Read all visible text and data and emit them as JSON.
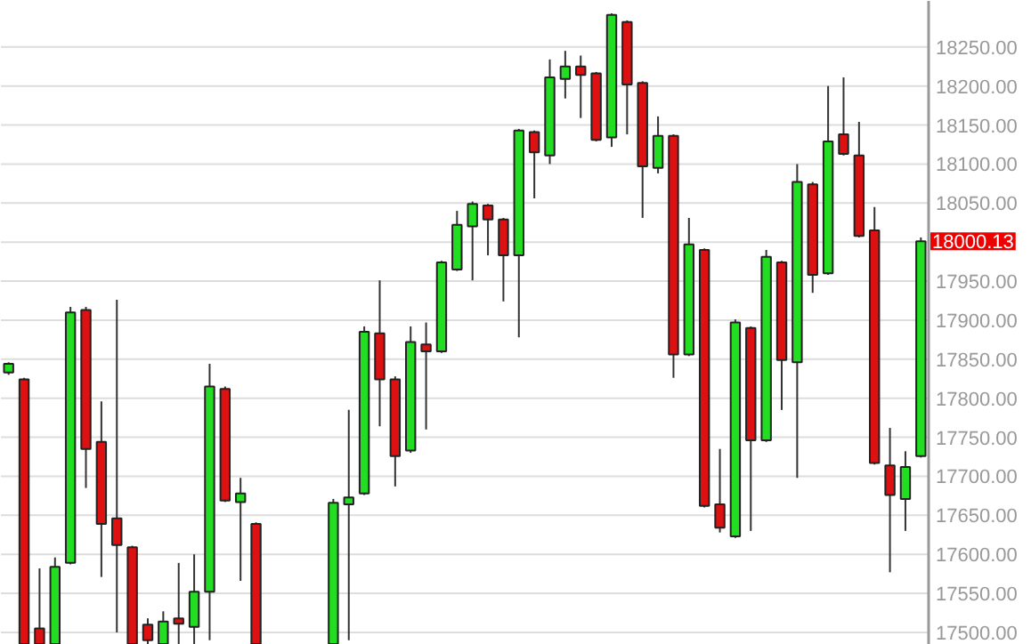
{
  "chart_data": {
    "type": "candlestick",
    "categories": [
      null,
      null,
      null,
      null,
      null,
      null,
      null,
      null,
      null,
      null,
      null,
      null,
      null,
      null,
      null,
      null,
      null,
      null,
      null,
      null,
      null,
      null,
      null,
      null,
      null,
      null,
      null,
      null,
      null,
      null,
      null,
      null,
      null,
      null,
      null,
      null,
      null,
      null,
      null,
      null,
      null,
      null,
      null,
      null,
      null,
      null,
      null,
      null,
      null,
      null,
      null,
      null,
      null,
      null,
      null,
      null,
      null,
      null,
      null,
      null
    ],
    "ohlc": [
      [
        17833,
        17846,
        17830,
        17844
      ],
      [
        17824,
        17826,
        17485,
        17485
      ],
      [
        17505,
        17582,
        17485,
        17485
      ],
      [
        17485,
        17596,
        17485,
        17584
      ],
      [
        17589,
        17917,
        17587,
        17910
      ],
      [
        17913,
        17917,
        17685,
        17735
      ],
      [
        17744,
        17796,
        17571,
        17639
      ],
      [
        17646,
        17926,
        17500,
        17612
      ],
      [
        17609,
        17611,
        17485,
        17485
      ],
      [
        17510,
        17518,
        17485,
        17490
      ],
      [
        17485,
        17527,
        17485,
        17514
      ],
      [
        17518,
        17589,
        17485,
        17511
      ],
      [
        17507,
        17600,
        17485,
        17552
      ],
      [
        17552,
        17844,
        17490,
        17815
      ],
      [
        17812,
        17815,
        17667,
        17669
      ],
      [
        17667,
        17698,
        17566,
        17678
      ],
      [
        17639,
        17641,
        17485,
        17485
      ],
      null,
      null,
      null,
      null,
      [
        17485,
        17671,
        17485,
        17666
      ],
      [
        17664,
        17785,
        17490,
        17673
      ],
      [
        17678,
        17892,
        17676,
        17885
      ],
      [
        17883,
        17951,
        17764,
        17824
      ],
      [
        17824,
        17828,
        17687,
        17726
      ],
      [
        17733,
        17892,
        17730,
        17872
      ],
      [
        17869,
        17897,
        17760,
        17860
      ],
      [
        17860,
        17976,
        17858,
        17974
      ],
      [
        17965,
        18040,
        17963,
        18022
      ],
      [
        18020,
        18052,
        17951,
        18049
      ],
      [
        18047,
        18049,
        17983,
        18029
      ],
      [
        18029,
        18031,
        17924,
        17983
      ],
      [
        17983,
        18145,
        17878,
        18143
      ],
      [
        18141,
        18143,
        18056,
        18115
      ],
      [
        18111,
        18234,
        18100,
        18211
      ],
      [
        18209,
        18245,
        18184,
        18225
      ],
      [
        18225,
        18239,
        18159,
        18214
      ],
      [
        18216,
        18218,
        18129,
        18131
      ],
      [
        18134,
        18293,
        18122,
        18291
      ],
      [
        18282,
        18284,
        18138,
        18202
      ],
      [
        18204,
        18206,
        18031,
        18097
      ],
      [
        18095,
        18161,
        18088,
        18136
      ],
      [
        18136,
        18138,
        17826,
        17856
      ],
      [
        17856,
        18031,
        17854,
        17997
      ],
      [
        17990,
        17992,
        17660,
        17662
      ],
      [
        17664,
        17735,
        17628,
        17634
      ],
      [
        17623,
        17901,
        17621,
        17897
      ],
      [
        17890,
        17892,
        17630,
        17746
      ],
      [
        17746,
        17990,
        17744,
        17981
      ],
      [
        17974,
        17976,
        17785,
        17849
      ],
      [
        17846,
        18100,
        17698,
        18077
      ],
      [
        18074,
        18077,
        17935,
        17958
      ],
      [
        17960,
        18200,
        17958,
        18129
      ],
      [
        18138,
        18211,
        18111,
        18113
      ],
      [
        18111,
        18154,
        18006,
        18008
      ],
      [
        18015,
        18045,
        17715,
        17717
      ],
      [
        17714,
        17762,
        17577,
        17676
      ],
      [
        17671,
        17732,
        17630,
        17712
      ],
      [
        17726,
        18006,
        17724,
        18001
      ]
    ],
    "colors": [
      "#22dd22",
      "#dd1111",
      "#dd1111",
      "#22dd22",
      "#22dd22",
      "#dd1111",
      "#dd1111",
      "#dd1111",
      "#dd1111",
      "#dd1111",
      "#22dd22",
      "#dd1111",
      "#22dd22",
      "#22dd22",
      "#dd1111",
      "#22dd22",
      "#dd1111",
      null,
      null,
      null,
      null,
      "#22dd22",
      "#22dd22",
      "#22dd22",
      "#dd1111",
      "#dd1111",
      "#22dd22",
      "#dd1111",
      "#22dd22",
      "#22dd22",
      "#22dd22",
      "#dd1111",
      "#dd1111",
      "#22dd22",
      "#dd1111",
      "#22dd22",
      "#22dd22",
      "#dd1111",
      "#dd1111",
      "#22dd22",
      "#dd1111",
      "#dd1111",
      "#22dd22",
      "#dd1111",
      "#22dd22",
      "#dd1111",
      "#dd1111",
      "#22dd22",
      "#dd1111",
      "#22dd22",
      "#dd1111",
      "#22dd22",
      "#dd1111",
      "#22dd22",
      "#dd1111",
      "#dd1111",
      "#dd1111",
      "#dd1111",
      "#22dd22",
      "#22dd22"
    ],
    "ylim": [
      17484,
      18309
    ],
    "yticks": [
      {
        "value": 17500,
        "label": "17500.00"
      },
      {
        "value": 17550,
        "label": "17550.00"
      },
      {
        "value": 17600,
        "label": "17600.00"
      },
      {
        "value": 17650,
        "label": "17650.00"
      },
      {
        "value": 17700,
        "label": "17700.00"
      },
      {
        "value": 17750,
        "label": "17750.00"
      },
      {
        "value": 17800,
        "label": "17800.00"
      },
      {
        "value": 17850,
        "label": "17850.00"
      },
      {
        "value": 17900,
        "label": "17900.00"
      },
      {
        "value": 17950,
        "label": "17950.00"
      },
      {
        "value": 18000,
        "label": null
      },
      {
        "value": 18050,
        "label": "18050.00"
      },
      {
        "value": 18100,
        "label": "18100.00"
      },
      {
        "value": 18150,
        "label": "18150.00"
      },
      {
        "value": 18200,
        "label": "18200.00"
      },
      {
        "value": 18250,
        "label": "18250.00"
      }
    ],
    "annotations": [
      "18000.13"
    ],
    "grid": "y",
    "tick_labels": "y"
  }
}
